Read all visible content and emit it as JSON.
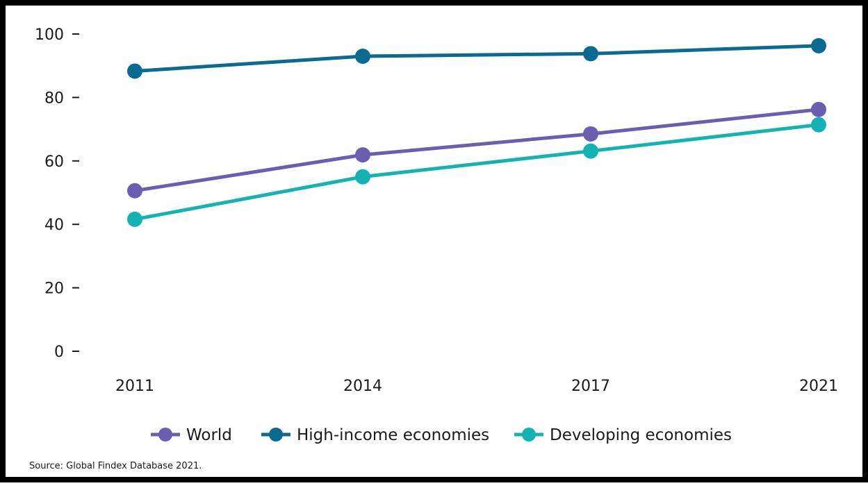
{
  "chart_data": {
    "type": "line",
    "title": "",
    "xlabel": "",
    "ylabel": "",
    "x": [
      "2011",
      "2014",
      "2017",
      "2021"
    ],
    "ylim": [
      0,
      100
    ],
    "yticks": [
      "0",
      "20",
      "40",
      "60",
      "80",
      "100"
    ],
    "grid": false,
    "legend_position": "bottom",
    "series": [
      {
        "name": "World",
        "color": "#6b5eb0",
        "values": [
          50.6,
          61.9,
          68.5,
          76.2
        ]
      },
      {
        "name": "High-income economies",
        "color": "#0a6a8f",
        "values": [
          88.3,
          93.0,
          93.8,
          96.3
        ]
      },
      {
        "name": "Developing economies",
        "color": "#14b3b3",
        "values": [
          41.6,
          55.0,
          63.1,
          71.4
        ]
      }
    ]
  },
  "source": "Source: Global Findex Database 2021."
}
